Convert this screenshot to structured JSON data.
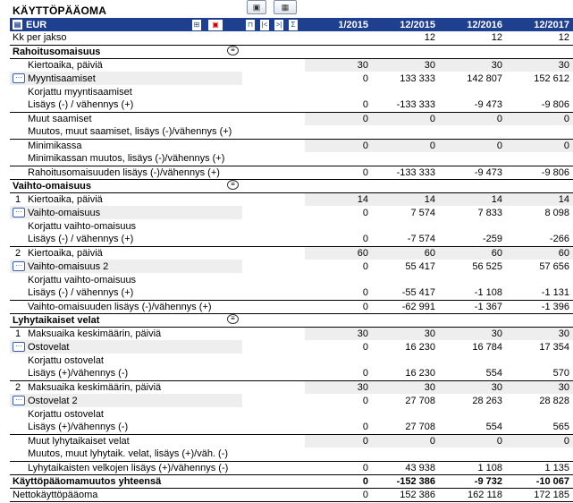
{
  "title": "KÄYTTÖPÄÄOMA",
  "header": {
    "currency": "EUR",
    "periods": [
      "1/2015",
      "12/2015",
      "12/2016",
      "12/2017"
    ]
  },
  "rows": [
    {
      "label": "Kk per jakso",
      "values": [
        "",
        "12",
        "12",
        "12"
      ],
      "type": "plain"
    },
    {
      "label": "Rahoitusomaisuus",
      "values": [
        "",
        "",
        "",
        ""
      ],
      "type": "section"
    },
    {
      "label": "Kiertoaika, päiviä",
      "values": [
        "30",
        "30",
        "30",
        "30"
      ],
      "type": "input"
    },
    {
      "label": "Myyntisaamiset",
      "values": [
        "0",
        "133 333",
        "142 807",
        "152 612"
      ],
      "type": "expand"
    },
    {
      "label": "Korjattu myyntisaamiset",
      "values": [
        "",
        "",
        "",
        ""
      ],
      "type": "sub"
    },
    {
      "label": "Lisäys (-) / vähennys (+)",
      "values": [
        "0",
        "-133 333",
        "-9 473",
        "-9 806"
      ],
      "type": "sub"
    },
    {
      "label": "Muut saamiset",
      "values": [
        "0",
        "0",
        "0",
        "0"
      ],
      "type": "sub-topline"
    },
    {
      "label": "Muutos, muut saamiset, lisäys (-)/vähennys (+)",
      "values": [
        "",
        "",
        "",
        ""
      ],
      "type": "sub"
    },
    {
      "label": "Minimikassa",
      "values": [
        "0",
        "0",
        "0",
        "0"
      ],
      "type": "sub-topline"
    },
    {
      "label": "Minimikassan muutos, lisäys (-)/vähennys (+)",
      "values": [
        "",
        "",
        "",
        ""
      ],
      "type": "sub"
    },
    {
      "label": "Rahoitusomaisuuden lisäys (-)/vähennys (+)",
      "values": [
        "0",
        "-133 333",
        "-9 473",
        "-9 806"
      ],
      "type": "sub-topline-bottom"
    },
    {
      "label": "Vaihto-omaisuus",
      "values": [
        "",
        "",
        "",
        ""
      ],
      "type": "section"
    },
    {
      "label": "Kiertoaika, päiviä",
      "index": "1",
      "values": [
        "14",
        "14",
        "14",
        "14"
      ],
      "type": "input-idx"
    },
    {
      "label": "Vaihto-omaisuus",
      "values": [
        "0",
        "7 574",
        "7 833",
        "8 098"
      ],
      "type": "expand"
    },
    {
      "label": "Korjattu vaihto-omaisuus",
      "values": [
        "",
        "",
        "",
        ""
      ],
      "type": "sub"
    },
    {
      "label": "Lisäys (-) / vähennys (+)",
      "values": [
        "0",
        "-7 574",
        "-259",
        "-266"
      ],
      "type": "sub"
    },
    {
      "label": "Kiertoaika, päiviä",
      "index": "2",
      "values": [
        "60",
        "60",
        "60",
        "60"
      ],
      "type": "input-idx-topline"
    },
    {
      "label": "Vaihto-omaisuus 2",
      "values": [
        "0",
        "55 417",
        "56 525",
        "57 656"
      ],
      "type": "expand"
    },
    {
      "label": "Korjattu vaihto-omaisuus",
      "values": [
        "",
        "",
        "",
        ""
      ],
      "type": "sub"
    },
    {
      "label": "Lisäys (-) / vähennys (+)",
      "values": [
        "0",
        "-55 417",
        "-1 108",
        "-1 131"
      ],
      "type": "sub"
    },
    {
      "label": "Vaihto-omaisuuden lisäys (-)/vähennys (+)",
      "values": [
        "0",
        "-62 991",
        "-1 367",
        "-1 396"
      ],
      "type": "sub-topline-bottom"
    },
    {
      "label": "Lyhytaikaiset velat",
      "values": [
        "",
        "",
        "",
        ""
      ],
      "type": "section"
    },
    {
      "label": "Maksuaika keskimäärin, päiviä",
      "index": "1",
      "values": [
        "30",
        "30",
        "30",
        "30"
      ],
      "type": "input-idx"
    },
    {
      "label": "Ostovelat",
      "values": [
        "0",
        "16 230",
        "16 784",
        "17 354"
      ],
      "type": "expand"
    },
    {
      "label": "Korjattu ostovelat",
      "values": [
        "",
        "",
        "",
        ""
      ],
      "type": "sub"
    },
    {
      "label": "Lisäys (+)/vähennys (-)",
      "values": [
        "0",
        "16 230",
        "554",
        "570"
      ],
      "type": "sub"
    },
    {
      "label": "Maksuaika keskimäärin, päiviä",
      "index": "2",
      "values": [
        "30",
        "30",
        "30",
        "30"
      ],
      "type": "input-idx-topline"
    },
    {
      "label": "Ostovelat 2",
      "values": [
        "0",
        "27 708",
        "28 263",
        "28 828"
      ],
      "type": "expand"
    },
    {
      "label": "Korjattu ostovelat",
      "values": [
        "",
        "",
        "",
        ""
      ],
      "type": "sub"
    },
    {
      "label": "Lisäys (+)/vähennys (-)",
      "values": [
        "0",
        "27 708",
        "554",
        "565"
      ],
      "type": "sub"
    },
    {
      "label": "Muut lyhytaikaiset velat",
      "values": [
        "0",
        "0",
        "0",
        "0"
      ],
      "type": "sub-topline"
    },
    {
      "label": "Muutos, muut lyhytaik. velat, lisäys (+)/väh. (-)",
      "values": [
        "",
        "",
        "",
        ""
      ],
      "type": "sub"
    },
    {
      "label": "Lyhytaikaisten velkojen lisäys (+)/vähennys (-)",
      "values": [
        "0",
        "43 938",
        "1 108",
        "1 135"
      ],
      "type": "sub-topline-bottom"
    },
    {
      "label": "Käyttöpääomamuutos yhteensä",
      "values": [
        "0",
        "-152 386",
        "-9 732",
        "-10 067"
      ],
      "type": "total"
    },
    {
      "label": "Nettokäyttöpääoma",
      "values": [
        "0",
        "152 386",
        "162 118",
        "172 185"
      ],
      "type": "net"
    }
  ]
}
